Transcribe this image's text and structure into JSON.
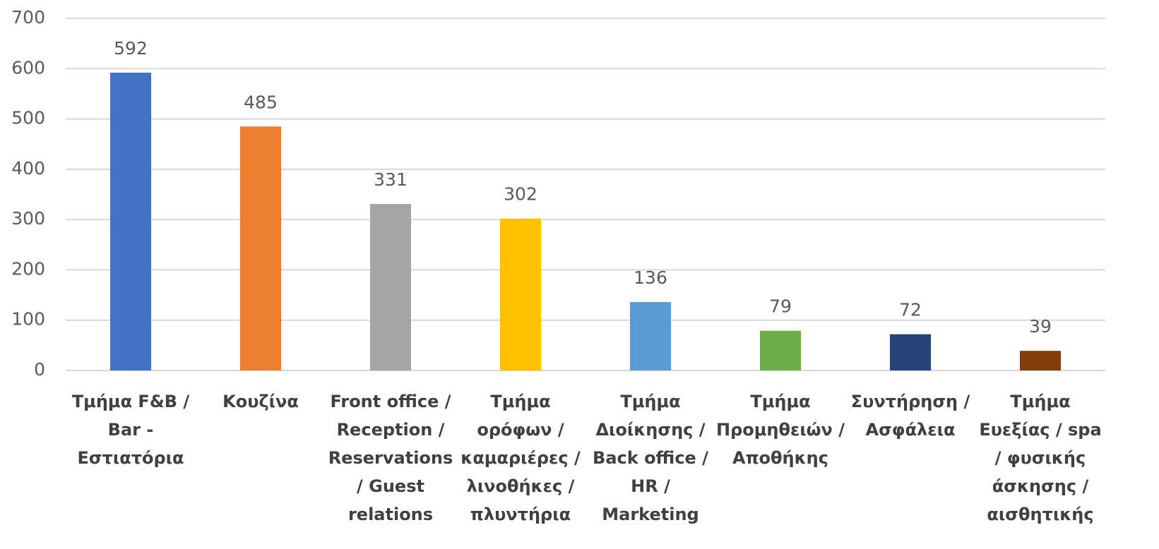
{
  "chart_data": {
    "type": "bar",
    "categories": [
      "Τμήμα F&B / Bar - Εστιατόρια",
      "Κουζίνα",
      "Front office / Reception / Reservations / Guest relations",
      "Τμήμα ορόφων / καμαριέρες / λινοθήκες / πλυντήρια",
      "Τμήμα Διοίκησης / Back office / HR / Marketing",
      "Τμήμα Προμηθειών / Αποθήκης",
      "Συντήρηση / Ασφάλεια",
      "Τμήμα Ευεξίας / spa / φυσικής άσκησης / αισθητικής"
    ],
    "values": [
      592,
      485,
      331,
      302,
      136,
      79,
      72,
      39
    ],
    "colors": [
      "#4472c4",
      "#ed7d31",
      "#a5a5a5",
      "#ffc000",
      "#5b9bd5",
      "#70ad47",
      "#264478",
      "#843c0c"
    ],
    "ylim": [
      0,
      700
    ],
    "yticks": [
      0,
      100,
      200,
      300,
      400,
      500,
      600,
      700
    ],
    "grid": true
  }
}
